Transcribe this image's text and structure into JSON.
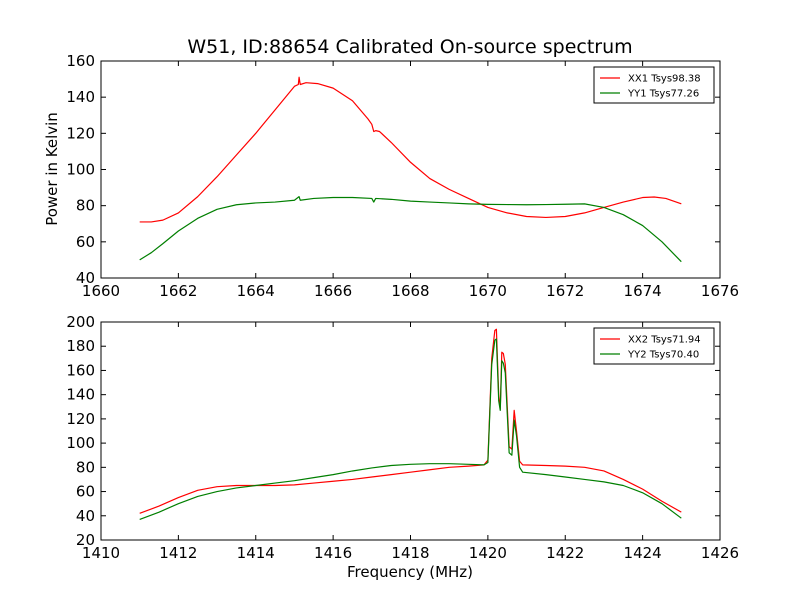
{
  "chart_data": [
    {
      "type": "line",
      "title": "W51, ID:88654 Calibrated On-source spectrum",
      "xlabel": "",
      "ylabel": "Power in Kelvin",
      "xlim": [
        1660,
        1676
      ],
      "ylim": [
        40,
        160
      ],
      "xticks": [
        "1660",
        "1662",
        "1664",
        "1666",
        "1668",
        "1670",
        "1672",
        "1674",
        "1676"
      ],
      "yticks": [
        "40",
        "60",
        "80",
        "100",
        "120",
        "140",
        "160"
      ],
      "grid": false,
      "legend_position": "top-right",
      "series": [
        {
          "name": "XX1 Tsys98.38",
          "color": "#ff0000",
          "points": [
            [
              1661.0,
              71
            ],
            [
              1661.3,
              71
            ],
            [
              1661.6,
              72
            ],
            [
              1662.0,
              76
            ],
            [
              1662.5,
              85
            ],
            [
              1663.0,
              96
            ],
            [
              1663.5,
              108
            ],
            [
              1664.0,
              120
            ],
            [
              1664.5,
              133
            ],
            [
              1665.0,
              146
            ],
            [
              1665.1,
              147
            ],
            [
              1665.12,
              151
            ],
            [
              1665.15,
              147
            ],
            [
              1665.3,
              148
            ],
            [
              1665.6,
              147.5
            ],
            [
              1666.0,
              145
            ],
            [
              1666.5,
              138
            ],
            [
              1666.9,
              128
            ],
            [
              1667.0,
              125
            ],
            [
              1667.05,
              121
            ],
            [
              1667.1,
              121.5
            ],
            [
              1667.2,
              121
            ],
            [
              1667.5,
              115
            ],
            [
              1668.0,
              104
            ],
            [
              1668.5,
              95
            ],
            [
              1669.0,
              89
            ],
            [
              1669.5,
              84
            ],
            [
              1670.0,
              79
            ],
            [
              1670.5,
              76
            ],
            [
              1671.0,
              74
            ],
            [
              1671.5,
              73.5
            ],
            [
              1672.0,
              74
            ],
            [
              1672.5,
              76
            ],
            [
              1673.0,
              79
            ],
            [
              1673.5,
              82
            ],
            [
              1674.0,
              84.5
            ],
            [
              1674.3,
              84.8
            ],
            [
              1674.6,
              84
            ],
            [
              1675.0,
              81
            ]
          ]
        },
        {
          "name": "YY1 Tsys77.26",
          "color": "#007f00",
          "points": [
            [
              1661.0,
              50
            ],
            [
              1661.3,
              54
            ],
            [
              1661.6,
              59
            ],
            [
              1662.0,
              66
            ],
            [
              1662.5,
              73
            ],
            [
              1663.0,
              78
            ],
            [
              1663.5,
              80.5
            ],
            [
              1664.0,
              81.5
            ],
            [
              1664.5,
              82
            ],
            [
              1665.0,
              83
            ],
            [
              1665.12,
              85
            ],
            [
              1665.15,
              83
            ],
            [
              1665.5,
              84
            ],
            [
              1666.0,
              84.5
            ],
            [
              1666.5,
              84.5
            ],
            [
              1667.0,
              84
            ],
            [
              1667.05,
              82
            ],
            [
              1667.1,
              84
            ],
            [
              1667.5,
              83.5
            ],
            [
              1668.0,
              82.5
            ],
            [
              1668.5,
              82
            ],
            [
              1669.0,
              81.5
            ],
            [
              1669.5,
              81
            ],
            [
              1670.0,
              80.7
            ],
            [
              1670.5,
              80.6
            ],
            [
              1671.0,
              80.5
            ],
            [
              1671.5,
              80.6
            ],
            [
              1672.0,
              80.8
            ],
            [
              1672.5,
              81
            ],
            [
              1673.0,
              79
            ],
            [
              1673.5,
              75
            ],
            [
              1674.0,
              69
            ],
            [
              1674.5,
              60
            ],
            [
              1675.0,
              49
            ]
          ]
        }
      ]
    },
    {
      "type": "line",
      "title": "",
      "xlabel": "Frequency (MHz)",
      "ylabel": "",
      "xlim": [
        1410,
        1426
      ],
      "ylim": [
        20,
        200
      ],
      "xticks": [
        "1410",
        "1412",
        "1414",
        "1416",
        "1418",
        "1420",
        "1422",
        "1424",
        "1426"
      ],
      "yticks": [
        "20",
        "40",
        "60",
        "80",
        "100",
        "120",
        "140",
        "160",
        "180",
        "200"
      ],
      "grid": false,
      "legend_position": "top-right",
      "series": [
        {
          "name": "XX2 Tsys71.94",
          "color": "#ff0000",
          "points": [
            [
              1411.0,
              42
            ],
            [
              1411.5,
              48
            ],
            [
              1412.0,
              55
            ],
            [
              1412.5,
              61
            ],
            [
              1413.0,
              64
            ],
            [
              1413.5,
              65
            ],
            [
              1414.0,
              65
            ],
            [
              1414.5,
              65
            ],
            [
              1415.0,
              65.5
            ],
            [
              1415.5,
              67
            ],
            [
              1416.0,
              68.5
            ],
            [
              1416.5,
              70
            ],
            [
              1417.0,
              72
            ],
            [
              1417.5,
              74
            ],
            [
              1418.0,
              76
            ],
            [
              1418.5,
              78
            ],
            [
              1419.0,
              80
            ],
            [
              1419.5,
              81
            ],
            [
              1419.9,
              82
            ],
            [
              1420.0,
              86
            ],
            [
              1420.1,
              170
            ],
            [
              1420.18,
              193
            ],
            [
              1420.22,
              194
            ],
            [
              1420.28,
              140
            ],
            [
              1420.32,
              128
            ],
            [
              1420.36,
              175
            ],
            [
              1420.4,
              174
            ],
            [
              1420.45,
              165
            ],
            [
              1420.55,
              97
            ],
            [
              1420.62,
              95
            ],
            [
              1420.68,
              127
            ],
            [
              1420.74,
              110
            ],
            [
              1420.82,
              85
            ],
            [
              1420.9,
              82
            ],
            [
              1421.5,
              81.5
            ],
            [
              1422.0,
              81
            ],
            [
              1422.5,
              80
            ],
            [
              1423.0,
              77
            ],
            [
              1423.5,
              70
            ],
            [
              1424.0,
              62
            ],
            [
              1424.5,
              52
            ],
            [
              1425.0,
              43
            ]
          ]
        },
        {
          "name": "YY2 Tsys70.40",
          "color": "#007f00",
          "points": [
            [
              1411.0,
              37
            ],
            [
              1411.5,
              43
            ],
            [
              1412.0,
              50
            ],
            [
              1412.5,
              56
            ],
            [
              1413.0,
              60
            ],
            [
              1413.5,
              63
            ],
            [
              1414.0,
              65
            ],
            [
              1414.5,
              67
            ],
            [
              1415.0,
              69
            ],
            [
              1415.5,
              71.5
            ],
            [
              1416.0,
              74
            ],
            [
              1416.5,
              77
            ],
            [
              1417.0,
              79.5
            ],
            [
              1417.5,
              81.5
            ],
            [
              1418.0,
              82.5
            ],
            [
              1418.5,
              83
            ],
            [
              1419.0,
              83
            ],
            [
              1419.5,
              82.5
            ],
            [
              1419.9,
              82
            ],
            [
              1420.0,
              84
            ],
            [
              1420.1,
              165
            ],
            [
              1420.18,
              185
            ],
            [
              1420.22,
              186
            ],
            [
              1420.28,
              135
            ],
            [
              1420.32,
              127
            ],
            [
              1420.36,
              168
            ],
            [
              1420.4,
              166
            ],
            [
              1420.45,
              158
            ],
            [
              1420.55,
              92
            ],
            [
              1420.62,
              90
            ],
            [
              1420.68,
              119
            ],
            [
              1420.74,
              106
            ],
            [
              1420.82,
              80
            ],
            [
              1420.9,
              76
            ],
            [
              1421.5,
              74
            ],
            [
              1422.0,
              72
            ],
            [
              1422.5,
              70
            ],
            [
              1423.0,
              68
            ],
            [
              1423.5,
              65
            ],
            [
              1424.0,
              59
            ],
            [
              1424.5,
              50
            ],
            [
              1425.0,
              38
            ]
          ]
        }
      ]
    }
  ]
}
